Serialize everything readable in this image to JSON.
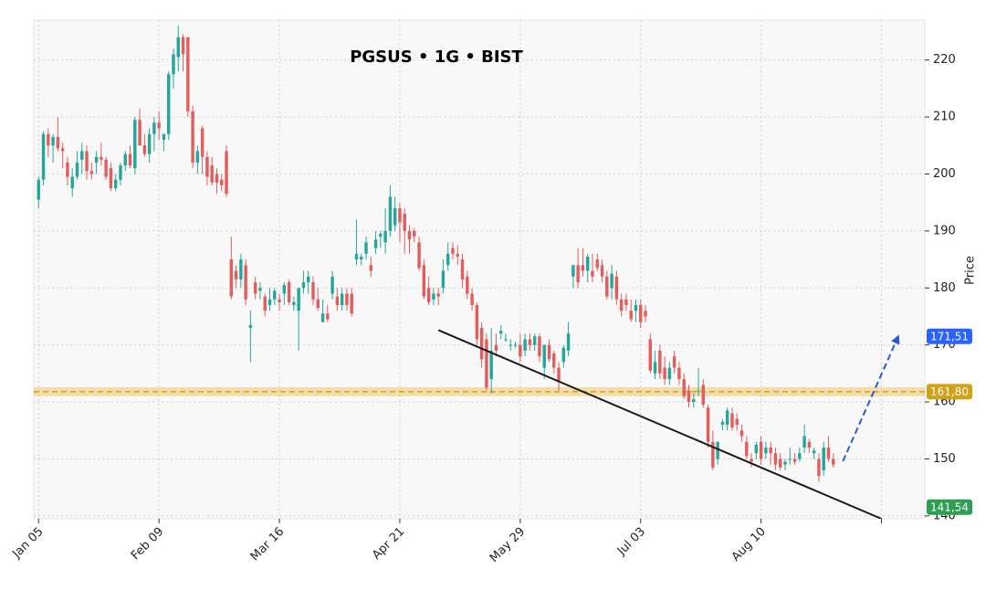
{
  "chart_data": {
    "type": "candlestick",
    "title": "PGSUS • 1G • BIST",
    "y_label": "Price",
    "xlim": [
      -1,
      184
    ],
    "ylim": [
      139.5,
      227
    ],
    "xticks": [
      {
        "value": 0,
        "label": "Jan 05"
      },
      {
        "value": 25,
        "label": "Feb 09"
      },
      {
        "value": 50,
        "label": "Mar 16"
      },
      {
        "value": 75,
        "label": "Apr 21"
      },
      {
        "value": 100,
        "label": "May 29"
      },
      {
        "value": 125,
        "label": "Jul 03"
      },
      {
        "value": 150,
        "label": "Aug 10"
      },
      {
        "value": 175,
        "label": ""
      }
    ],
    "yticks": [
      140,
      150,
      160,
      170,
      180,
      190,
      200,
      210,
      220
    ],
    "grid": true,
    "up_color": "#26a69a",
    "down_color": "#e35d5d",
    "candles": [
      [
        195.5,
        199.5,
        194,
        199
      ],
      [
        199,
        207.5,
        198,
        207
      ],
      [
        207,
        208,
        203,
        205
      ],
      [
        205,
        207,
        202,
        206.5
      ],
      [
        206.5,
        210,
        204,
        204.5
      ],
      [
        204.5,
        205.5,
        201,
        204
      ],
      [
        202,
        203,
        198,
        199.5
      ],
      [
        197.5,
        201,
        196,
        199.5
      ],
      [
        199.5,
        204,
        199,
        202
      ],
      [
        202.5,
        205.5,
        200,
        204
      ],
      [
        204,
        205,
        199,
        200.5
      ],
      [
        200.5,
        202,
        199,
        200
      ],
      [
        202,
        204,
        200,
        203
      ],
      [
        203,
        205.5,
        201.5,
        202.5
      ],
      [
        202.5,
        203,
        199,
        199.5
      ],
      [
        201,
        202,
        197,
        197.5
      ],
      [
        197.5,
        200,
        197,
        199
      ],
      [
        199,
        202,
        198,
        201.5
      ],
      [
        201.5,
        204,
        200.5,
        203.5
      ],
      [
        203.5,
        205,
        201,
        201.5
      ],
      [
        201,
        210,
        200,
        209.5
      ],
      [
        209.5,
        211.5,
        205,
        205
      ],
      [
        205,
        207,
        203,
        203.5
      ],
      [
        203.5,
        208,
        202,
        207
      ],
      [
        207,
        210,
        204,
        209
      ],
      [
        209,
        211,
        206,
        208
      ],
      [
        206,
        207,
        204,
        207
      ],
      [
        207,
        218,
        206,
        217.5
      ],
      [
        217.5,
        222,
        215,
        221
      ],
      [
        220.5,
        226,
        218,
        224
      ],
      [
        224,
        224.5,
        218,
        221
      ],
      [
        224,
        224,
        210,
        211
      ],
      [
        211,
        212,
        201,
        202
      ],
      [
        202,
        205,
        200,
        204
      ],
      [
        208,
        208.5,
        200,
        203
      ],
      [
        203,
        204,
        198,
        199.5
      ],
      [
        201.5,
        203,
        198,
        198.5
      ],
      [
        200,
        201,
        196.5,
        198.5
      ],
      [
        199,
        200,
        197,
        198
      ],
      [
        204,
        205,
        196,
        196.5
      ],
      [
        185,
        189,
        178,
        178.5
      ],
      [
        183,
        184,
        180,
        181.5
      ],
      [
        181.5,
        186,
        180,
        185
      ],
      [
        184,
        185,
        177,
        178
      ],
      [
        173,
        176,
        167,
        173.5
      ],
      [
        181,
        182,
        178,
        179
      ],
      [
        179.5,
        181,
        178,
        180
      ],
      [
        178.5,
        179,
        175,
        176
      ],
      [
        177,
        180,
        176,
        178
      ],
      [
        178,
        180,
        177,
        179.5
      ],
      [
        178,
        179,
        176,
        177.5
      ],
      [
        179,
        181,
        177,
        180.5
      ],
      [
        181,
        181.5,
        177,
        177.5
      ],
      [
        177,
        178.5,
        176,
        177.5
      ],
      [
        176,
        180,
        169,
        180
      ],
      [
        180,
        183,
        179,
        181
      ],
      [
        181,
        183,
        179,
        182
      ],
      [
        181,
        182,
        177,
        178
      ],
      [
        178,
        180,
        176,
        176.5
      ],
      [
        174,
        178,
        174,
        175.5
      ],
      [
        175.5,
        177,
        174,
        174.5
      ],
      [
        179,
        183,
        178,
        182
      ],
      [
        178.5,
        180,
        176,
        177
      ],
      [
        177,
        180,
        176,
        179
      ],
      [
        179,
        180,
        176,
        177
      ],
      [
        179,
        180,
        175,
        175.5
      ],
      [
        185,
        192,
        184,
        186
      ],
      [
        185,
        186,
        184,
        185.5
      ],
      [
        186,
        189,
        185,
        188
      ],
      [
        184,
        185.5,
        182,
        183
      ],
      [
        187,
        190,
        186,
        188.5
      ],
      [
        189,
        190,
        187,
        189.5
      ],
      [
        188,
        194,
        186,
        190
      ],
      [
        190,
        198,
        189,
        196
      ],
      [
        191,
        196,
        190,
        194
      ],
      [
        194,
        195,
        188,
        191.5
      ],
      [
        193,
        194,
        186,
        190
      ],
      [
        190,
        191,
        186,
        188.5
      ],
      [
        190,
        190.5,
        188,
        189
      ],
      [
        188,
        189,
        183,
        183.5
      ],
      [
        184,
        185,
        178,
        178.5
      ],
      [
        180,
        182,
        177,
        177.5
      ],
      [
        178,
        180,
        177,
        179
      ],
      [
        179,
        180,
        177,
        178.5
      ],
      [
        180,
        185,
        179,
        183
      ],
      [
        184,
        188,
        183,
        186
      ],
      [
        187,
        188,
        185,
        186
      ],
      [
        186,
        187.5,
        184,
        185.5
      ],
      [
        185,
        186,
        180,
        181.5
      ],
      [
        182,
        183,
        178,
        179
      ],
      [
        179,
        180,
        176,
        177
      ],
      [
        177,
        177.5,
        170,
        171
      ],
      [
        173,
        174,
        166,
        167.5
      ],
      [
        171,
        172,
        162,
        162.5
      ],
      [
        164,
        173,
        161.5,
        169
      ],
      [
        170,
        172,
        168,
        169
      ],
      [
        172,
        173.5,
        171,
        172.5
      ],
      [
        171,
        172,
        170.5,
        171
      ],
      [
        170,
        171,
        169,
        170
      ],
      [
        170,
        170.5,
        169.5,
        170
      ],
      [
        170,
        172,
        167,
        168
      ],
      [
        169,
        172,
        168,
        171
      ],
      [
        171,
        172,
        169,
        170
      ],
      [
        170,
        172,
        169,
        171.5
      ],
      [
        171.5,
        172,
        167,
        168
      ],
      [
        166,
        170,
        164,
        170
      ],
      [
        170,
        171,
        167,
        167.5
      ],
      [
        168.5,
        169,
        165,
        166
      ],
      [
        166,
        167,
        162,
        163.5
      ],
      [
        167,
        170,
        166,
        169.5
      ],
      [
        169,
        174,
        168,
        172
      ],
      [
        182,
        184,
        180,
        184
      ],
      [
        184,
        187,
        180,
        181
      ],
      [
        184,
        187,
        182,
        183
      ],
      [
        183,
        186,
        181,
        185.5
      ],
      [
        183,
        186,
        181,
        182
      ],
      [
        185,
        186,
        183,
        183.5
      ],
      [
        184,
        185,
        181,
        182
      ],
      [
        182,
        183,
        178,
        178.5
      ],
      [
        180,
        184,
        178,
        182.5
      ],
      [
        182,
        183,
        177,
        178
      ],
      [
        178,
        179,
        175,
        176
      ],
      [
        178,
        179,
        176,
        177
      ],
      [
        176,
        178,
        174,
        174.5
      ],
      [
        176,
        178,
        174,
        177
      ],
      [
        177,
        178,
        173,
        174
      ],
      [
        176,
        177,
        174,
        175
      ],
      [
        171,
        172,
        165,
        165.5
      ],
      [
        165,
        169,
        164,
        167
      ],
      [
        169,
        170,
        164,
        165
      ],
      [
        166,
        168,
        163,
        164
      ],
      [
        164,
        167,
        163,
        166
      ],
      [
        168,
        169,
        165,
        166
      ],
      [
        166,
        167,
        163,
        164
      ],
      [
        164,
        165,
        160.5,
        161
      ],
      [
        162,
        163,
        159,
        160
      ],
      [
        160,
        161.5,
        159,
        160.5
      ],
      [
        162,
        166,
        161,
        162
      ],
      [
        163,
        164,
        159,
        159.5
      ],
      [
        159,
        159.5,
        152,
        153
      ],
      [
        153,
        155,
        148,
        148.5
      ],
      [
        150,
        153,
        149,
        153
      ],
      [
        156,
        157,
        155,
        156.5
      ],
      [
        156,
        159,
        155,
        158.5
      ],
      [
        158,
        159,
        155,
        155.5
      ],
      [
        157,
        158,
        155,
        156
      ],
      [
        155,
        156,
        153,
        154
      ],
      [
        153,
        154,
        150,
        150.5
      ],
      [
        150,
        151,
        148.5,
        149.5
      ],
      [
        151,
        153,
        150,
        152.5
      ],
      [
        153,
        154,
        149,
        150
      ],
      [
        151,
        153,
        150,
        152
      ],
      [
        152,
        153,
        149,
        151
      ],
      [
        151,
        152,
        148,
        149
      ],
      [
        150,
        151,
        148,
        148.5
      ],
      [
        149,
        150,
        148,
        149.5
      ],
      [
        150,
        152,
        149,
        150
      ],
      [
        150,
        151,
        149,
        149.5
      ],
      [
        150,
        152,
        149.5,
        151
      ],
      [
        152,
        156,
        151,
        154
      ],
      [
        153,
        153.5,
        151,
        152
      ],
      [
        151,
        152,
        150,
        151.5
      ],
      [
        150,
        151,
        146,
        147
      ],
      [
        148,
        153,
        147,
        152
      ],
      [
        152,
        154,
        149.5,
        150
      ],
      [
        150,
        151,
        148.5,
        149
      ]
    ],
    "zone": {
      "value": 161.8,
      "band": [
        161,
        162.6
      ],
      "color": "#e0a000"
    },
    "lines": [
      {
        "points": [
          [
            83,
            172.6
          ],
          [
            175,
            139.5
          ]
        ],
        "color": "#1a1a1a",
        "dashed": false,
        "arrow": false
      },
      {
        "points": [
          [
            167,
            149.6
          ],
          [
            178.5,
            171.51
          ]
        ],
        "color": "#2a5bd7",
        "dashed": true,
        "arrow": true
      }
    ],
    "price_labels": [
      {
        "value": 171.51,
        "label": "171,51",
        "color": "#2962ff"
      },
      {
        "value": 161.8,
        "label": "161,80",
        "color": "#d4a017"
      },
      {
        "value": 141.54,
        "label": "141,54",
        "color": "#2e9e50"
      }
    ]
  }
}
